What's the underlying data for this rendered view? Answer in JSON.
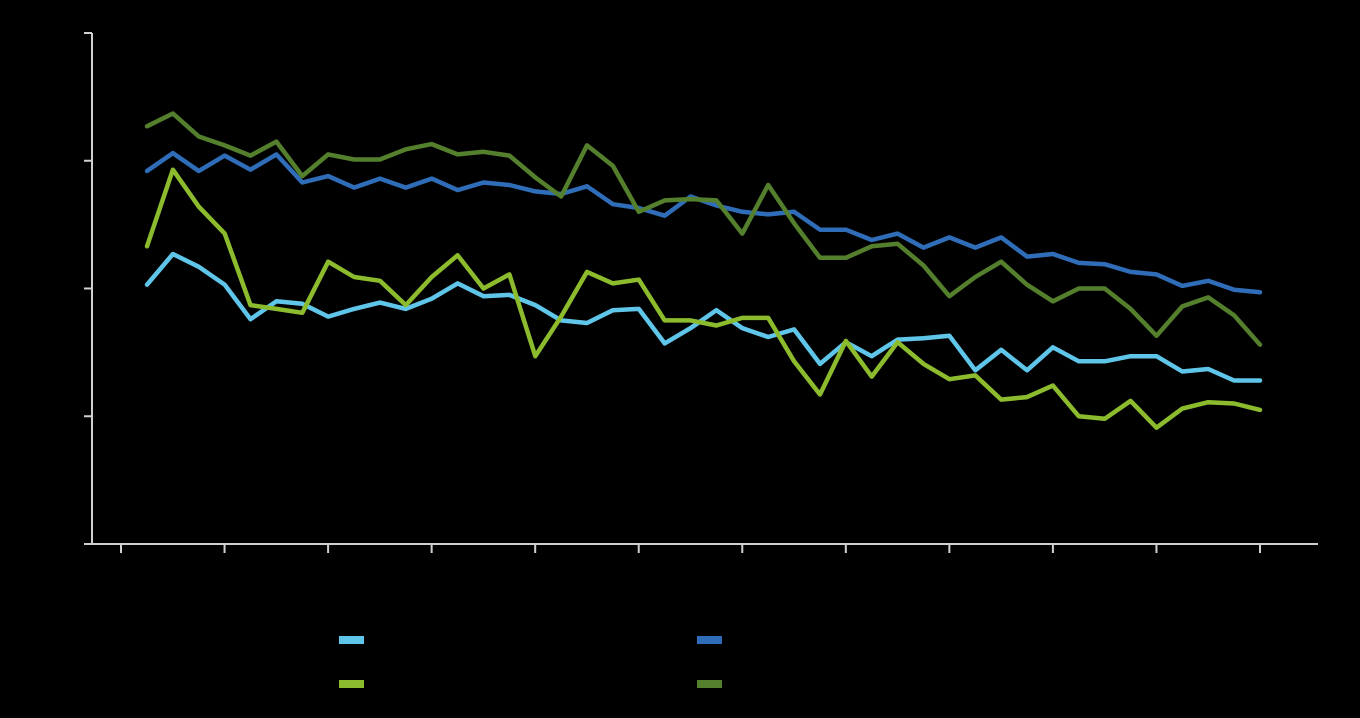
{
  "colors": {
    "background": "#000000",
    "axis": "#d0d0d0",
    "light_blue": "#5fc6ea",
    "dark_blue": "#2f6db8",
    "lime_green": "#8cbc2e",
    "dark_green": "#547f2c"
  },
  "chart_data": {
    "type": "line",
    "title": "",
    "xlabel": "",
    "ylabel": "",
    "grid": false,
    "legend_position": "bottom",
    "x_count": 44,
    "ylim": [
      0,
      4
    ],
    "yticks": [
      0,
      1,
      2,
      3,
      4
    ],
    "x_ticks_count": 12,
    "series": [
      {
        "id": "light_blue",
        "color": "#5fc6ea",
        "values": [
          2.03,
          2.27,
          2.17,
          2.03,
          1.76,
          1.9,
          1.88,
          1.78,
          1.84,
          1.89,
          1.84,
          1.92,
          2.04,
          1.94,
          1.95,
          1.87,
          1.75,
          1.73,
          1.83,
          1.84,
          1.57,
          1.69,
          1.83,
          1.69,
          1.62,
          1.68,
          1.41,
          1.58,
          1.47,
          1.6,
          1.61,
          1.63,
          1.36,
          1.52,
          1.36,
          1.54,
          1.43,
          1.43,
          1.47,
          1.47,
          1.35,
          1.37,
          1.28,
          1.28
        ]
      },
      {
        "id": "dark_blue",
        "color": "#2f6db8",
        "values": [
          2.92,
          3.06,
          2.92,
          3.04,
          2.93,
          3.05,
          2.83,
          2.88,
          2.79,
          2.86,
          2.79,
          2.86,
          2.77,
          2.83,
          2.81,
          2.76,
          2.74,
          2.8,
          2.66,
          2.63,
          2.57,
          2.72,
          2.65,
          2.6,
          2.58,
          2.6,
          2.46,
          2.46,
          2.38,
          2.43,
          2.32,
          2.4,
          2.32,
          2.4,
          2.25,
          2.27,
          2.2,
          2.19,
          2.13,
          2.11,
          2.02,
          2.06,
          1.99,
          1.97
        ]
      },
      {
        "id": "lime_green",
        "color": "#8cbc2e",
        "values": [
          2.33,
          2.93,
          2.64,
          2.43,
          1.87,
          1.84,
          1.81,
          2.21,
          2.09,
          2.06,
          1.87,
          2.09,
          2.26,
          2.0,
          2.11,
          1.47,
          1.78,
          2.13,
          2.04,
          2.07,
          1.75,
          1.75,
          1.71,
          1.77,
          1.77,
          1.43,
          1.17,
          1.59,
          1.31,
          1.58,
          1.41,
          1.29,
          1.32,
          1.13,
          1.15,
          1.24,
          1.0,
          0.98,
          1.12,
          0.91,
          1.06,
          1.11,
          1.1,
          1.05
        ]
      },
      {
        "id": "dark_green",
        "color": "#547f2c",
        "values": [
          3.27,
          3.37,
          3.19,
          3.12,
          3.04,
          3.15,
          2.88,
          3.05,
          3.01,
          3.01,
          3.09,
          3.13,
          3.05,
          3.07,
          3.04,
          2.87,
          2.72,
          3.12,
          2.96,
          2.6,
          2.69,
          2.7,
          2.69,
          2.43,
          2.81,
          2.51,
          2.24,
          2.24,
          2.33,
          2.35,
          2.18,
          1.94,
          2.09,
          2.21,
          2.03,
          1.9,
          2.0,
          2.0,
          1.84,
          1.63,
          1.86,
          1.93,
          1.79,
          1.56
        ]
      }
    ]
  }
}
